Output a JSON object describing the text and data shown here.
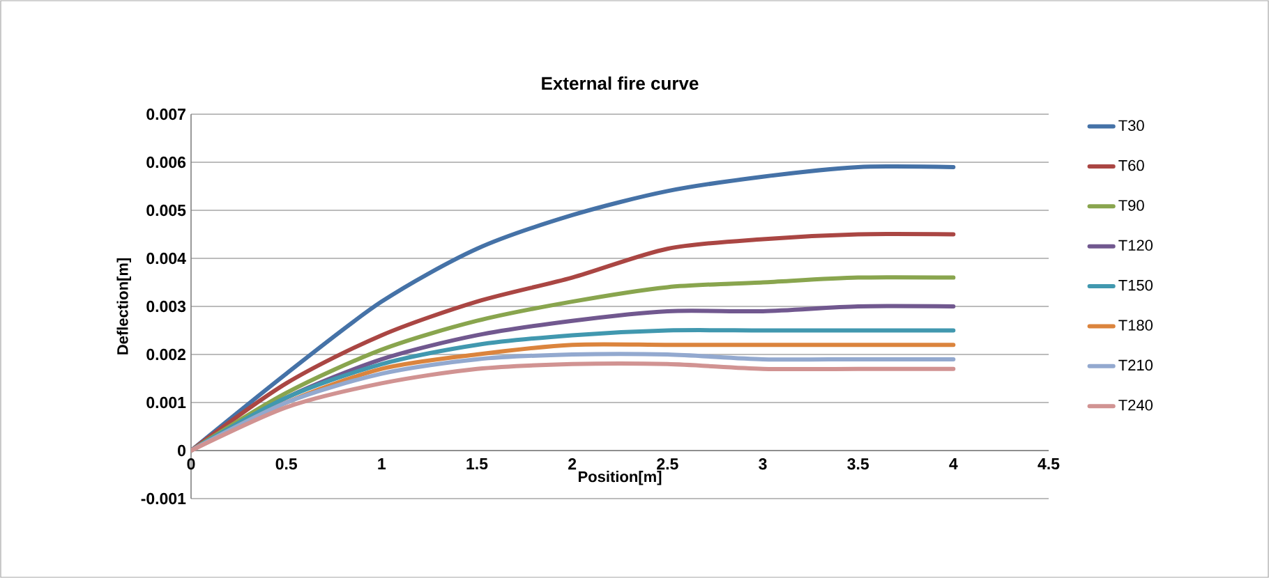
{
  "chart_data": {
    "type": "line",
    "title": "External fire curve",
    "xlabel": "Position[m]",
    "ylabel": "Deflection[m]",
    "x": [
      0,
      0.5,
      1,
      1.5,
      2,
      2.5,
      3,
      3.5,
      4
    ],
    "series": [
      {
        "name": "T30",
        "color": "#4572a7",
        "values": [
          0,
          0.0016,
          0.0031,
          0.0042,
          0.0049,
          0.0054,
          0.0057,
          0.0059,
          0.0059
        ]
      },
      {
        "name": "T60",
        "color": "#aa4643",
        "values": [
          0,
          0.0014,
          0.0024,
          0.0031,
          0.0036,
          0.0042,
          0.0044,
          0.0045,
          0.0045
        ]
      },
      {
        "name": "T90",
        "color": "#89a54e",
        "values": [
          0,
          0.0012,
          0.0021,
          0.0027,
          0.0031,
          0.0034,
          0.0035,
          0.0036,
          0.0036
        ]
      },
      {
        "name": "T120",
        "color": "#71588f",
        "values": [
          0,
          0.0011,
          0.0019,
          0.0024,
          0.0027,
          0.0029,
          0.0029,
          0.003,
          0.003
        ]
      },
      {
        "name": "T150",
        "color": "#4198af",
        "values": [
          0,
          0.0011,
          0.0018,
          0.0022,
          0.0024,
          0.0025,
          0.0025,
          0.0025,
          0.0025
        ]
      },
      {
        "name": "T180",
        "color": "#db843d",
        "values": [
          0,
          0.001,
          0.0017,
          0.002,
          0.0022,
          0.0022,
          0.0022,
          0.0022,
          0.0022
        ]
      },
      {
        "name": "T210",
        "color": "#93a9cf",
        "values": [
          0,
          0.001,
          0.0016,
          0.0019,
          0.002,
          0.002,
          0.0019,
          0.0019,
          0.0019
        ]
      },
      {
        "name": "T240",
        "color": "#d19392",
        "values": [
          0,
          0.0009,
          0.0014,
          0.0017,
          0.0018,
          0.0018,
          0.0017,
          0.0017,
          0.0017
        ]
      }
    ],
    "xlim": [
      0,
      4.5
    ],
    "xticks": [
      0,
      0.5,
      1,
      1.5,
      2,
      2.5,
      3,
      3.5,
      4,
      4.5
    ],
    "ylim": [
      -0.001,
      0.007
    ],
    "yticks": [
      -0.001,
      0,
      0.001,
      0.002,
      0.003,
      0.004,
      0.005,
      0.006,
      0.007
    ],
    "grid": "y",
    "legend": "right",
    "marker": "none",
    "line_style": "solid"
  }
}
